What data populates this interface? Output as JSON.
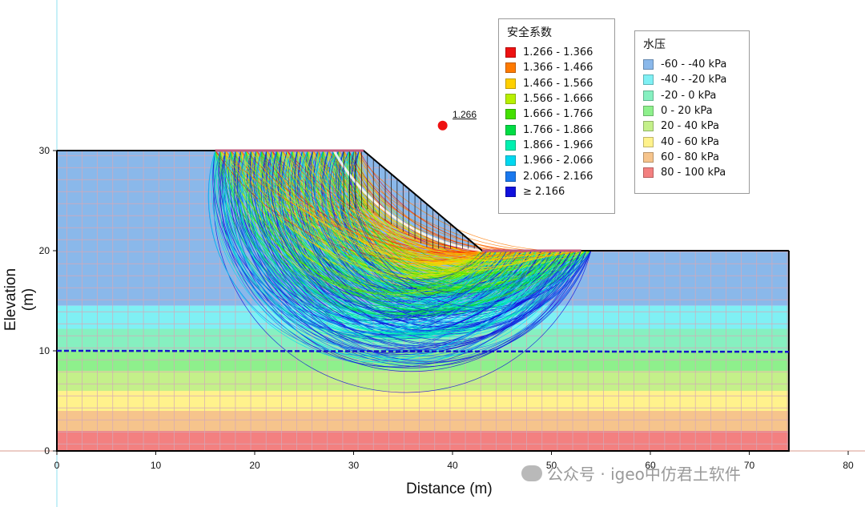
{
  "chart_data": {
    "type": "slope-stability",
    "xlabel": "Distance (m)",
    "ylabel": "Elevation (m)",
    "xlim": [
      0,
      80
    ],
    "ylim": [
      0,
      30
    ],
    "xticks": [
      0,
      10,
      20,
      30,
      40,
      50,
      60,
      70,
      80
    ],
    "yticks": [
      0,
      10,
      20,
      30
    ],
    "slope_profile": [
      [
        0,
        30
      ],
      [
        31,
        30
      ],
      [
        43,
        20
      ],
      [
        74,
        20
      ]
    ],
    "domain": {
      "x": [
        0,
        74
      ],
      "y": [
        0,
        30
      ]
    },
    "water_table_elevation": 10,
    "critical_factor_of_safety": "1.266",
    "critical_center": [
      39,
      32.5
    ],
    "fos_legend": {
      "title": "安全系数",
      "ranges": [
        {
          "label": "1.266 - 1.366",
          "color": "#ee1111"
        },
        {
          "label": "1.366 - 1.466",
          "color": "#ff7a00"
        },
        {
          "label": "1.466 - 1.566",
          "color": "#ffd000"
        },
        {
          "label": "1.566 - 1.666",
          "color": "#b8f000"
        },
        {
          "label": "1.666 - 1.766",
          "color": "#44e000"
        },
        {
          "label": "1.766 - 1.866",
          "color": "#00dd44"
        },
        {
          "label": "1.866 - 1.966",
          "color": "#00f0b0"
        },
        {
          "label": "1.966 - 2.066",
          "color": "#00d8f0"
        },
        {
          "label": "2.066 - 2.166",
          "color": "#1a78ee"
        },
        {
          "label": "≥ 2.166",
          "color": "#1010dd"
        }
      ]
    },
    "pwp_legend": {
      "title": "水压",
      "ranges": [
        {
          "label": "-60 - -40 kPa",
          "color": "#8ab8ea",
          "elev": [
            14.5,
            30
          ]
        },
        {
          "label": "-40 - -20 kPa",
          "color": "#7ff0f4",
          "elev": [
            12.2,
            14.5
          ]
        },
        {
          "label": "-20 - 0 kPa",
          "color": "#86f0c0",
          "elev": [
            10,
            12.2
          ]
        },
        {
          "label": "0 - 20 kPa",
          "color": "#8ef08c",
          "elev": [
            8,
            10
          ]
        },
        {
          "label": "20 - 40 kPa",
          "color": "#c4f08a",
          "elev": [
            6,
            8
          ]
        },
        {
          "label": "40 - 60 kPa",
          "color": "#fff28c",
          "elev": [
            4,
            6
          ]
        },
        {
          "label": "60 - 80 kPa",
          "color": "#f6c48c",
          "elev": [
            2,
            4
          ]
        },
        {
          "label": "80 - 100 kPa",
          "color": "#f38080",
          "elev": [
            0,
            2
          ]
        }
      ]
    }
  },
  "watermark": {
    "text": "公众号 · igeo中仿君土软件"
  }
}
